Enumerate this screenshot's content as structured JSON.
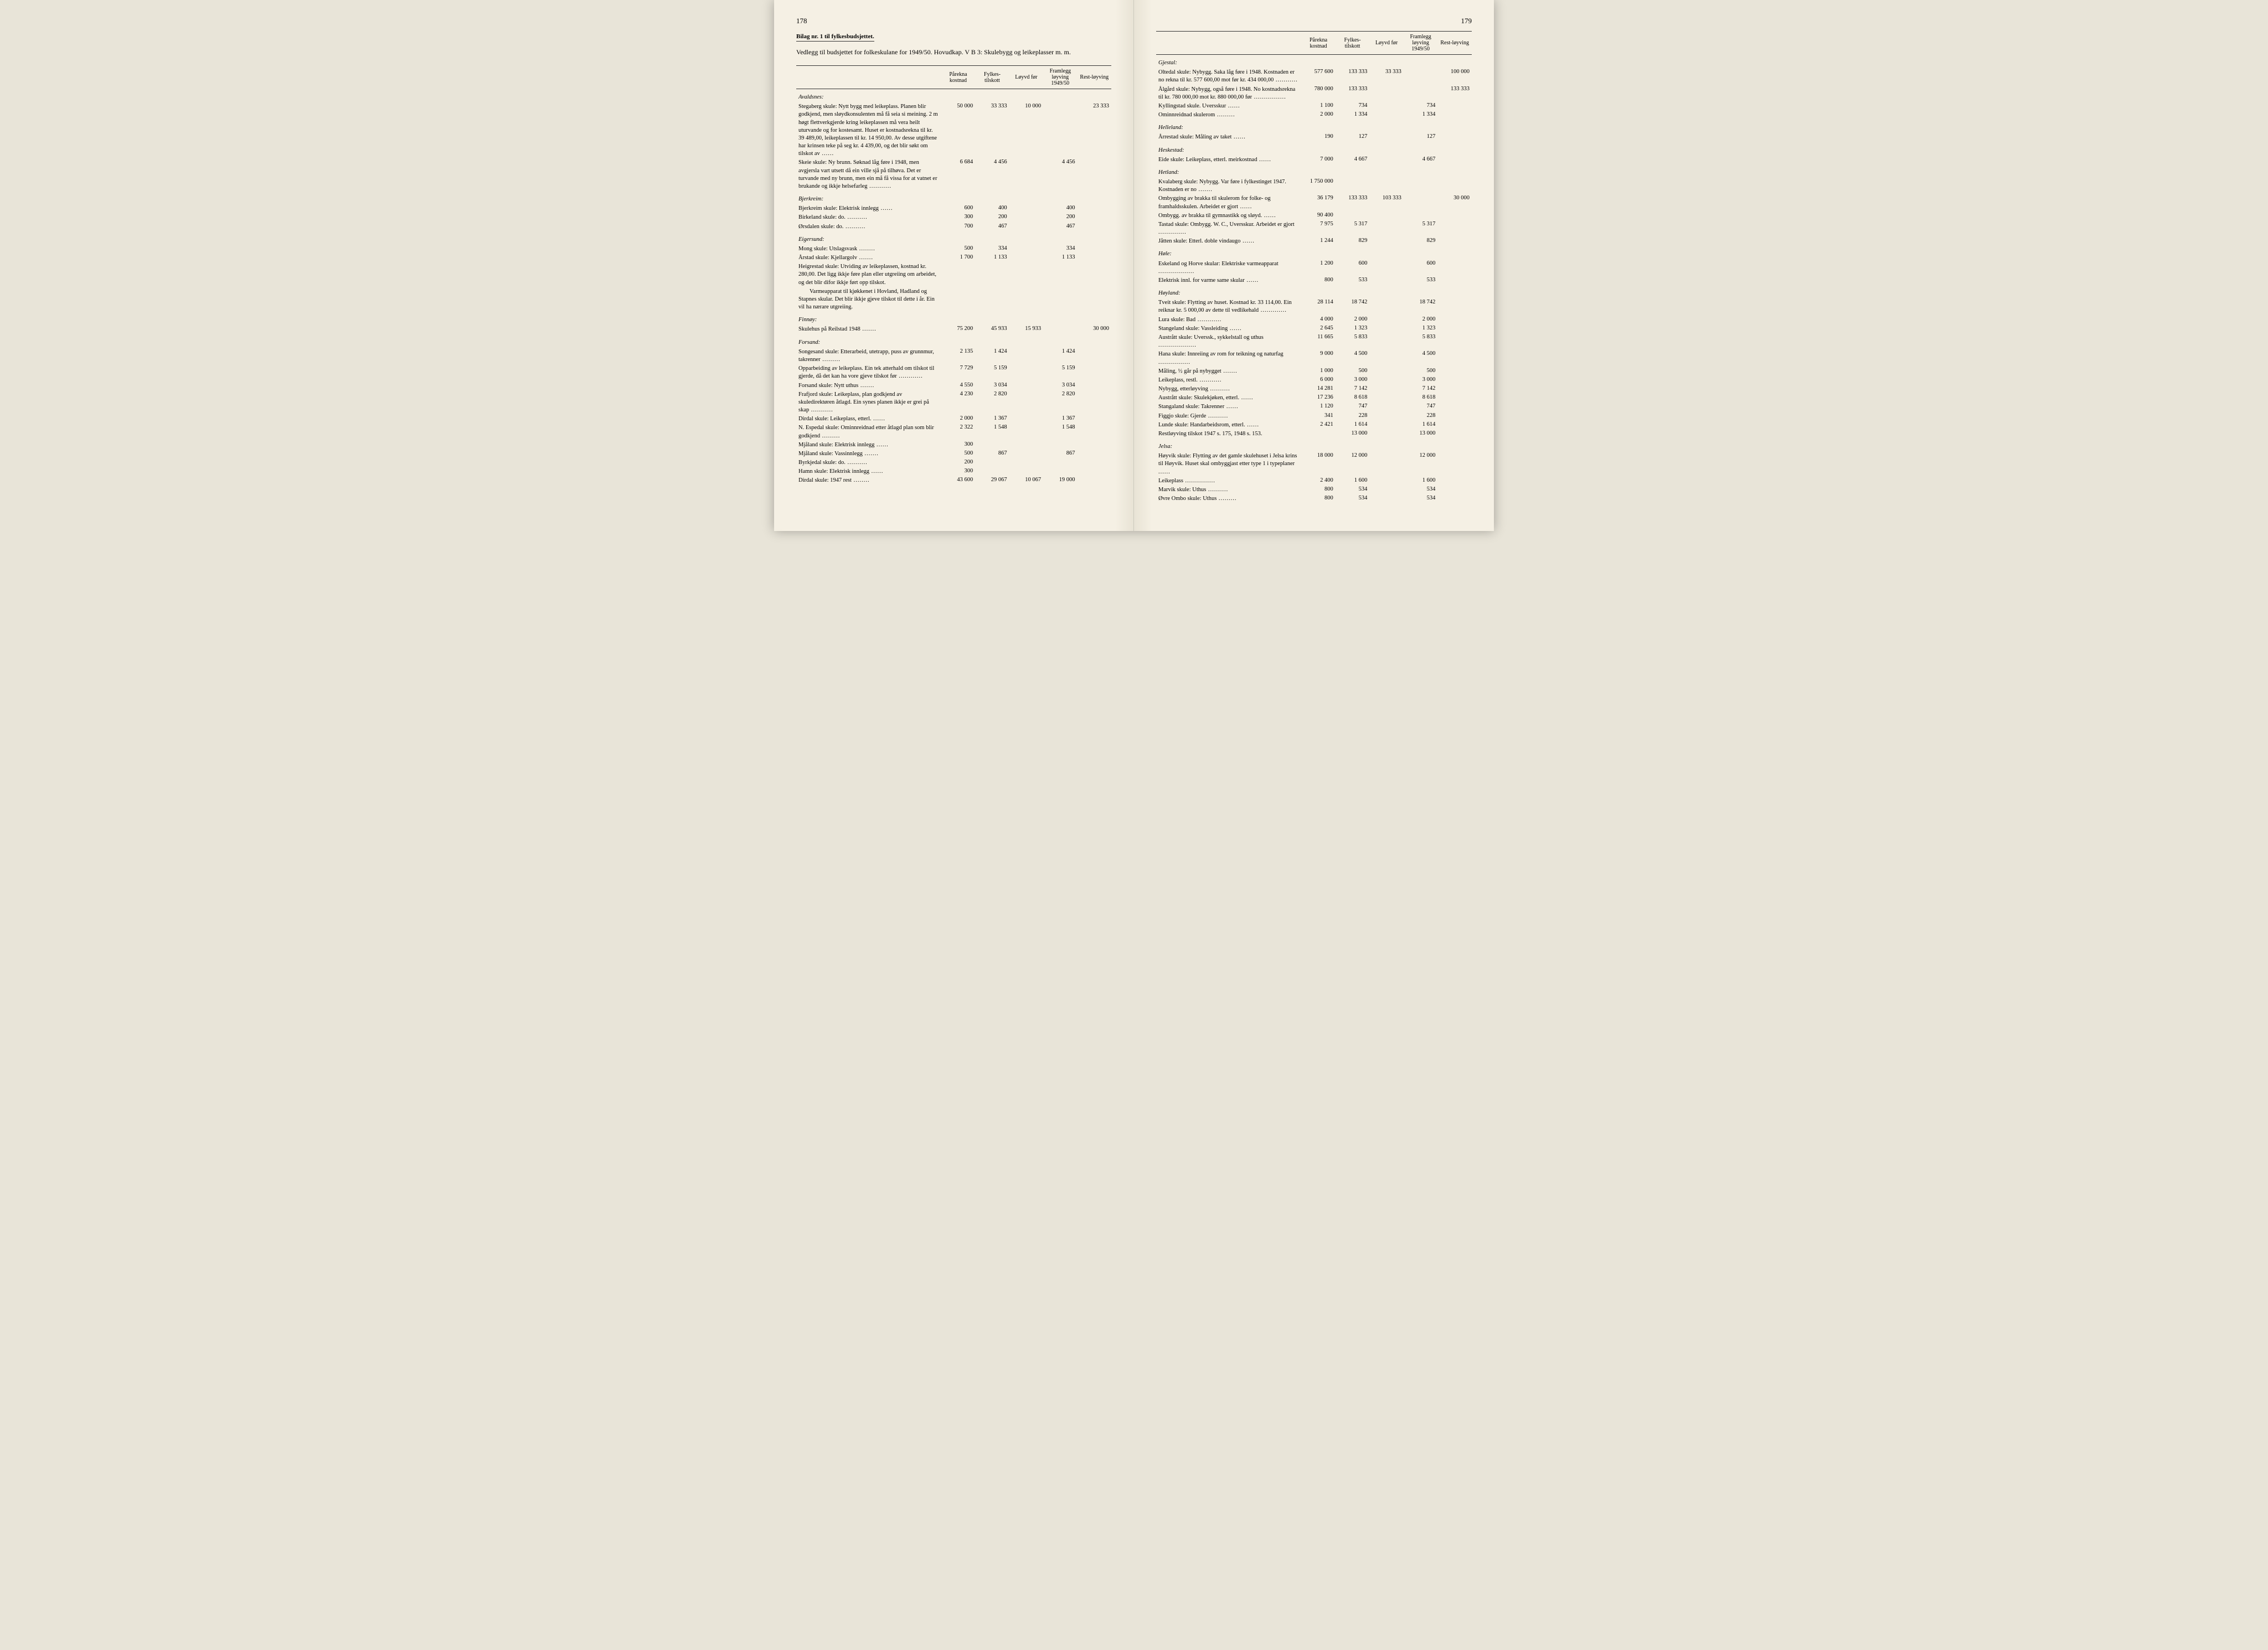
{
  "pageLeft": "178",
  "pageRight": "179",
  "bilag": "Bilag nr. 1 til fylkesbudsjettet.",
  "intro": "Vedlegg til budsjettet for folkeskulane for 1949/50. Hovudkap. V B 3: Skulebygg og leikeplasser m. m.",
  "columns": [
    "Pårekna kostnad",
    "Fylkes-tilskott",
    "Løyvd før",
    "Framlegg løyving 1949/50",
    "Rest-løyving"
  ],
  "left": {
    "sections": [
      {
        "head": "Avaldsnes:",
        "rows": [
          {
            "desc": "Stegaberg skule: Nytt bygg med leikeplass. Planen blir godkjend, men sløydkonsulenten må få seia si meining. 2 m høgt flettverkgjerde kring leikeplassen må vera heilt uturvande og for kostesamt. Huset er kostnadsrekna til kr. 39 489,00, leikeplassen til kr. 14 950,00. Av desse utgiftene har krinsen teke på seg kr. 4 439,00, og det blir søkt om tilskot av",
            "v": [
              "50 000",
              "33 333",
              "10 000",
              "",
              "23 333"
            ],
            "block": true
          },
          {
            "desc": "Skeie skule: Ny brunn. Søknad låg føre i 1948, men avgjersla vart utsett då ein ville sjå på tilhøva. Det er turvande med ny brunn, men ein må få vissa for at vatnet er brukande og ikkje helsefarleg",
            "v": [
              "6 684",
              "4 456",
              "",
              "4 456",
              ""
            ],
            "block": true
          }
        ]
      },
      {
        "head": "Bjerkreim:",
        "rows": [
          {
            "desc": "Bjerkreim skule: Elektrisk innlegg",
            "v": [
              "600",
              "400",
              "",
              "400",
              ""
            ]
          },
          {
            "desc": "Birkeland skule: do.",
            "v": [
              "300",
              "200",
              "",
              "200",
              ""
            ]
          },
          {
            "desc": "Ørsdalen skule: do.",
            "v": [
              "700",
              "467",
              "",
              "467",
              ""
            ]
          }
        ]
      },
      {
        "head": "Eigersund:",
        "rows": [
          {
            "desc": "Mong skule: Utslagsvask",
            "v": [
              "500",
              "334",
              "",
              "334",
              ""
            ]
          },
          {
            "desc": "Årstad skule: Kjellargolv",
            "v": [
              "1 700",
              "1 133",
              "",
              "1 133",
              ""
            ]
          },
          {
            "desc": "Heigrestad skule: Utviding av leikeplassen, kostnad kr. 280,00. Det ligg ikkje føre plan eller utgreiing om arbeidet, og det blir difor ikkje ført opp tilskot.",
            "v": [
              "",
              "",
              "",
              "",
              ""
            ],
            "block": true,
            "nodot": true
          },
          {
            "desc": "Varmeapparat til kjøkkenet i Hovland, Hadland og Stapnes skular. Det blir ikkje gjeve tilskot til dette i år. Ein vil ha nærare utgreiing.",
            "v": [
              "",
              "",
              "",
              "",
              ""
            ],
            "block": true,
            "nodot": true,
            "indent": true
          }
        ]
      },
      {
        "head": "Finnøy:",
        "rows": [
          {
            "desc": "Skulehus på Reilstad 1948",
            "v": [
              "75 200",
              "45 933",
              "15 933",
              "",
              "30 000"
            ]
          }
        ]
      },
      {
        "head": "Forsand:",
        "rows": [
          {
            "desc": "Songesand skule: Etterarbeid, utetrapp, puss av grunnmur, takrenner",
            "v": [
              "2 135",
              "1 424",
              "",
              "1 424",
              ""
            ],
            "block": true
          },
          {
            "desc": "Opparbeiding av leikeplass. Ein tek atterhald om tilskot til gjerde, då det kan ha vore gjeve tilskot før",
            "v": [
              "7 729",
              "5 159",
              "",
              "5 159",
              ""
            ],
            "block": true
          },
          {
            "desc": "Forsand skule: Nytt uthus",
            "v": [
              "4 550",
              "3 034",
              "",
              "3 034",
              ""
            ]
          },
          {
            "desc": "Frafjord skule: Leikeplass, plan godkjend av skuledirektøren åtlagd. Ein synes planen ikkje er grei på skap",
            "v": [
              "4 230",
              "2 820",
              "",
              "2 820",
              ""
            ],
            "block": true
          },
          {
            "desc": "Dirdal skule: Leikeplass, etterl.",
            "v": [
              "2 000",
              "1 367",
              "",
              "1 367",
              ""
            ]
          },
          {
            "desc": "N. Espedal skule: Ominnreidnad etter åtlagd plan som blir godkjend",
            "v": [
              "2 322",
              "1 548",
              "",
              "1 548",
              ""
            ],
            "block": true
          },
          {
            "desc": "Mjåland skule: Elektrisk innlegg",
            "v": [
              "300",
              "",
              "",
              "",
              ""
            ]
          },
          {
            "desc": "Mjåland skule: Vassinnlegg",
            "v": [
              "500",
              "867",
              "",
              "867",
              ""
            ]
          },
          {
            "desc": "Byrkjedal skule: do.",
            "v": [
              "200",
              "",
              "",
              "",
              ""
            ]
          },
          {
            "desc": "Hamn skule: Elektrisk innlegg",
            "v": [
              "300",
              "",
              "",
              "",
              ""
            ]
          },
          {
            "desc": "Dirdal skule: 1947 rest",
            "v": [
              "43 600",
              "29 067",
              "10 067",
              "19 000",
              ""
            ]
          }
        ]
      }
    ]
  },
  "right": {
    "sections": [
      {
        "head": "Gjestal:",
        "rows": [
          {
            "desc": "Oltedal skule: Nybygg. Saka låg føre i 1948. Kostnaden er no rekna til kr. 577 600,00 mot før kr. 434 000,00",
            "v": [
              "577 600",
              "133 333",
              "33 333",
              "",
              "100 000"
            ],
            "block": true
          },
          {
            "desc": "Ålgård skule: Nybygg, også føre i 1948. No kostnadsrekna til kr. 780 000,00 mot kr. 880 000,00 før",
            "v": [
              "780 000",
              "133 333",
              "",
              "",
              "133 333"
            ],
            "block": true
          },
          {
            "desc": "Kyllingstad skule. Uversskur",
            "v": [
              "1 100",
              "734",
              "",
              "734",
              ""
            ]
          },
          {
            "desc": "Ominnreidnad skulerom",
            "v": [
              "2 000",
              "1 334",
              "",
              "1 334",
              ""
            ]
          }
        ]
      },
      {
        "head": "Helleland:",
        "rows": [
          {
            "desc": "Årrestad skule: Måling av taket",
            "v": [
              "190",
              "127",
              "",
              "127",
              ""
            ]
          }
        ]
      },
      {
        "head": "Heskestad:",
        "rows": [
          {
            "desc": "Eide skule: Leikeplass, etterl. meirkostnad",
            "v": [
              "7 000",
              "4 667",
              "",
              "4 667",
              ""
            ]
          }
        ]
      },
      {
        "head": "Hetland:",
        "rows": [
          {
            "desc": "Kvalaberg skule: Nybygg. Var føre i fylkestinget 1947. Kostnaden er no",
            "v": [
              "1 750 000",
              "",
              "",
              "",
              ""
            ],
            "block": true
          },
          {
            "desc": "Ombygging av brakka til skulerom for folke- og framhaldsskulen. Arbeidet er gjort",
            "v": [
              "36 179",
              "133 333",
              "103 333",
              "",
              "30 000"
            ],
            "block": true
          },
          {
            "desc": "Ombygg. av brakka til gymnastikk og sløyd.",
            "v": [
              "90 400",
              "",
              "",
              "",
              ""
            ]
          },
          {
            "desc": "Tastad skule: Ombygg. W. C., Uversskur. Arbeidet er gjort",
            "v": [
              "7 975",
              "5 317",
              "",
              "5 317",
              ""
            ],
            "block": true
          },
          {
            "desc": "Jåtten skule: Etterl. doble vindaugo",
            "v": [
              "1 244",
              "829",
              "",
              "829",
              ""
            ]
          }
        ]
      },
      {
        "head": "Høle:",
        "rows": [
          {
            "desc": "Eskeland og Horve skular: Elektriske varmeapparat",
            "v": [
              "1 200",
              "600",
              "",
              "600",
              ""
            ],
            "block": true
          },
          {
            "desc": "Elektrisk innl. for varme same skular",
            "v": [
              "800",
              "533",
              "",
              "533",
              ""
            ]
          }
        ]
      },
      {
        "head": "Høyland:",
        "rows": [
          {
            "desc": "Tveit skule: Flytting av huset. Kostnad kr. 33 114,00. Ein reiknar kr. 5 000,00 av dette til vedlikehald",
            "v": [
              "28 114",
              "18 742",
              "",
              "18 742",
              ""
            ],
            "block": true
          },
          {
            "desc": "Lura skule: Bad",
            "v": [
              "4 000",
              "2 000",
              "",
              "2 000",
              ""
            ]
          },
          {
            "desc": "Stangeland skule: Vassleiding",
            "v": [
              "2 645",
              "1 323",
              "",
              "1 323",
              ""
            ]
          },
          {
            "desc": "Austrått skule: Uverssk., sykkelstall og uthus",
            "v": [
              "11 665",
              "5 833",
              "",
              "5 833",
              ""
            ]
          },
          {
            "desc": "Hana skule: Innreiing av rom for teikning og naturfag",
            "v": [
              "9 000",
              "4 500",
              "",
              "4 500",
              ""
            ],
            "block": true
          },
          {
            "desc": "Måling, ½ går på nybygget",
            "v": [
              "1 000",
              "500",
              "",
              "500",
              ""
            ]
          },
          {
            "desc": "Leikeplass, restl.",
            "v": [
              "6 000",
              "3 000",
              "",
              "3 000",
              ""
            ]
          },
          {
            "desc": "Nybygg, etterløyving",
            "v": [
              "14 281",
              "7 142",
              "",
              "7 142",
              ""
            ]
          },
          {
            "desc": "Austrått skule: Skulekjøken, etterl.",
            "v": [
              "17 236",
              "8 618",
              "",
              "8 618",
              ""
            ]
          },
          {
            "desc": "Stangaland skule: Takrenner",
            "v": [
              "1 120",
              "747",
              "",
              "747",
              ""
            ]
          },
          {
            "desc": "Figgjo skule: Gjerde",
            "v": [
              "341",
              "228",
              "",
              "228",
              ""
            ]
          },
          {
            "desc": "Lunde skule: Handarbeidsrom, etterl.",
            "v": [
              "2 421",
              "1 614",
              "",
              "1 614",
              ""
            ]
          },
          {
            "desc": "Restløyving tilskot 1947 s. 175, 1948 s. 153.",
            "v": [
              "",
              "13 000",
              "",
              "13 000",
              ""
            ],
            "nodot": true
          }
        ]
      },
      {
        "head": "Jelsa:",
        "rows": [
          {
            "desc": "Høyvik skule: Flytting av det gamle skulehuset i Jelsa krins til Høyvik. Huset skal ombyggjast etter type 1 i typeplaner",
            "v": [
              "18 000",
              "12 000",
              "",
              "12 000",
              ""
            ],
            "block": true
          },
          {
            "desc": "Leikeplass",
            "v": [
              "2 400",
              "1 600",
              "",
              "1 600",
              ""
            ]
          },
          {
            "desc": "Marvik skule: Uthus",
            "v": [
              "800",
              "534",
              "",
              "534",
              ""
            ]
          },
          {
            "desc": "Øvre Ombo skule: Uthus",
            "v": [
              "800",
              "534",
              "",
              "534",
              ""
            ]
          }
        ]
      }
    ]
  }
}
